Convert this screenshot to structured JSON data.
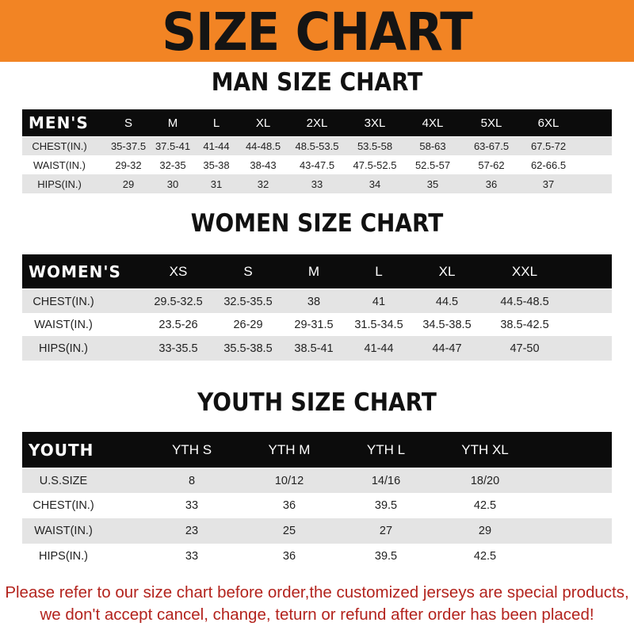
{
  "banner": {
    "title": "SIZE CHART",
    "color": "#f28424"
  },
  "men": {
    "title": "MAN SIZE CHART",
    "header": [
      "MEN'S",
      "S",
      "M",
      "L",
      "XL",
      "2XL",
      "3XL",
      "4XL",
      "5XL",
      "6XL"
    ],
    "rows": [
      [
        "CHEST(IN.)",
        "35-37.5",
        "37.5-41",
        "41-44",
        "44-48.5",
        "48.5-53.5",
        "53.5-58",
        "58-63",
        "63-67.5",
        "67.5-72"
      ],
      [
        "WAIST(IN.)",
        "29-32",
        "32-35",
        "35-38",
        "38-43",
        "43-47.5",
        "47.5-52.5",
        "52.5-57",
        "57-62",
        "62-66.5"
      ],
      [
        "HIPS(IN.)",
        "29",
        "30",
        "31",
        "32",
        "33",
        "34",
        "35",
        "36",
        "37"
      ]
    ]
  },
  "women": {
    "title": "WOMEN SIZE CHART",
    "header": [
      "WOMEN'S",
      "XS",
      "S",
      "M",
      "L",
      "XL",
      "XXL"
    ],
    "rows": [
      [
        "CHEST(IN.)",
        "29.5-32.5",
        "32.5-35.5",
        "38",
        "41",
        "44.5",
        "44.5-48.5"
      ],
      [
        "WAIST(IN.)",
        "23.5-26",
        "26-29",
        "29-31.5",
        "31.5-34.5",
        "34.5-38.5",
        "38.5-42.5"
      ],
      [
        "HIPS(IN.)",
        "33-35.5",
        "35.5-38.5",
        "38.5-41",
        "41-44",
        "44-47",
        "47-50"
      ]
    ]
  },
  "youth": {
    "title": "YOUTH SIZE CHART",
    "header": [
      "YOUTH",
      "YTH S",
      "YTH M",
      "YTH L",
      "YTH XL"
    ],
    "rows": [
      [
        "U.S.SIZE",
        "8",
        "10/12",
        "14/16",
        "18/20"
      ],
      [
        "CHEST(IN.)",
        "33",
        "36",
        "39.5",
        "42.5"
      ],
      [
        "WAIST(IN.)",
        "23",
        "25",
        "27",
        "29"
      ],
      [
        "HIPS(IN.)",
        "33",
        "36",
        "39.5",
        "42.5"
      ]
    ]
  },
  "footer": {
    "line1": "Please refer to our size chart before order,the customized jerseys are special products,",
    "line2": "we don't accept cancel, change, teturn or refund after order has been placed!"
  }
}
